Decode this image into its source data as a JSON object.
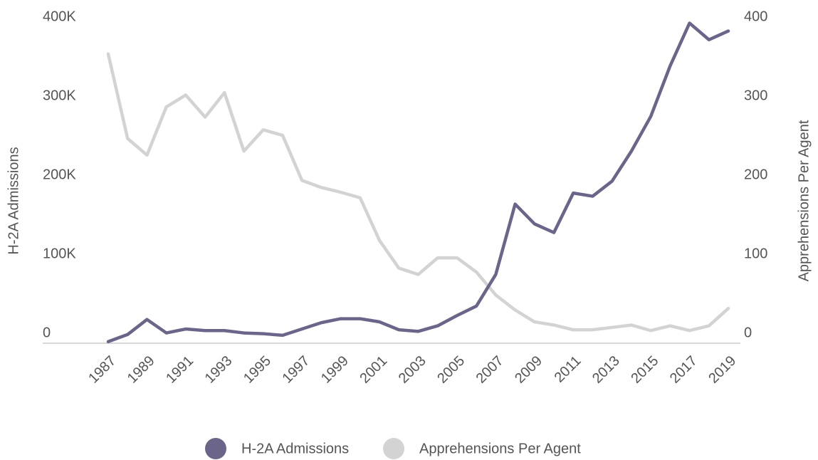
{
  "chart_data": {
    "type": "line",
    "y_label": "H-2A Admissions",
    "y2_label": "Apprehensions Per Agent",
    "x": [
      1987,
      1988,
      1989,
      1990,
      1991,
      1992,
      1993,
      1994,
      1995,
      1996,
      1997,
      1998,
      1999,
      2000,
      2001,
      2002,
      2003,
      2004,
      2005,
      2006,
      2007,
      2008,
      2009,
      2010,
      2011,
      2012,
      2013,
      2014,
      2015,
      2016,
      2017,
      2018,
      2019
    ],
    "xlim": [
      1987,
      2019
    ],
    "xticks": [
      1987,
      1989,
      1991,
      1993,
      1995,
      1997,
      1999,
      2001,
      2003,
      2005,
      2007,
      2009,
      2011,
      2013,
      2015,
      2017,
      2019
    ],
    "ylim": [
      0,
      400000
    ],
    "yticks": [
      0,
      {
        "value": 100000,
        "label": "100K"
      },
      {
        "value": 200000,
        "label": "200K"
      },
      {
        "value": 300000,
        "label": "300K"
      },
      {
        "value": 400000,
        "label": "400K"
      }
    ],
    "y2lim": [
      0,
      400
    ],
    "y2ticks": [
      0,
      100,
      200,
      300,
      400
    ],
    "grid": false,
    "legend": "bottom",
    "series": [
      {
        "name": "H-2A Admissions",
        "color": "#6b6589",
        "values": [
          2000,
          11000,
          30000,
          13000,
          18000,
          16000,
          16000,
          13000,
          12000,
          10000,
          18000,
          26000,
          31000,
          31000,
          27000,
          17000,
          15000,
          22000,
          35000,
          47000,
          87000,
          176000,
          151000,
          140000,
          190000,
          186000,
          205000,
          243000,
          287000,
          351000,
          405000,
          384000,
          395000
        ]
      },
      {
        "name": "Apprehensions Per Agent",
        "color": "#d3d3d3",
        "axis": "y2",
        "values": [
          366,
          259,
          238,
          299,
          314,
          286,
          317,
          243,
          270,
          263,
          206,
          197,
          191,
          184,
          130,
          95,
          87,
          108,
          108,
          90,
          61,
          42,
          27,
          23,
          17,
          17,
          20,
          23,
          16,
          22,
          16,
          22,
          44
        ]
      }
    ]
  }
}
